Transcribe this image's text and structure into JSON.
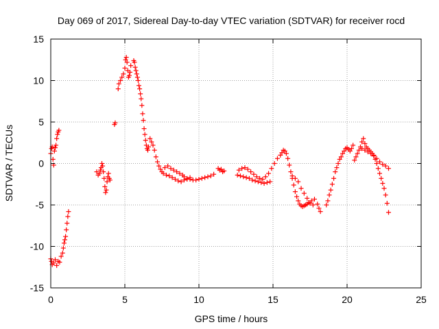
{
  "chart_data": {
    "type": "scatter",
    "title": "Day 069 of 2017, Sidereal Day-to-day VTEC variation (SDTVAR) for receiver rocd",
    "xlabel": "GPS time / hours",
    "ylabel": "SDTVAR / TECUs",
    "xlim": [
      0,
      25
    ],
    "ylim": [
      -15,
      15
    ],
    "xticks": [
      0,
      5,
      10,
      15,
      20,
      25
    ],
    "yticks": [
      -15,
      -10,
      -5,
      0,
      5,
      10,
      15
    ],
    "grid": true,
    "marker": "+",
    "series_color": "#ff0000",
    "series": [
      {
        "name": "SDTVAR",
        "x": [
          0.0,
          0.05,
          0.1,
          0.15,
          0.2,
          0.25,
          0.3,
          0.35,
          0.4,
          0.45,
          0.5,
          0.55,
          0.0,
          0.05,
          0.1,
          0.2,
          0.3,
          0.4,
          0.5,
          0.6,
          0.7,
          0.8,
          0.85,
          0.9,
          0.95,
          1.0,
          1.05,
          1.1,
          1.15,
          1.2,
          3.1,
          3.2,
          3.3,
          3.35,
          3.4,
          3.45,
          3.5,
          3.55,
          3.6,
          3.65,
          3.7,
          3.75,
          3.8,
          3.85,
          3.9,
          3.95,
          4.0,
          4.3,
          4.35,
          4.55,
          4.6,
          4.7,
          4.8,
          4.9,
          5.0,
          5.05,
          5.1,
          5.15,
          5.2,
          5.25,
          5.3,
          5.35,
          5.4,
          5.6,
          5.65,
          5.7,
          5.75,
          5.8,
          5.85,
          5.9,
          5.95,
          6.0,
          6.05,
          6.1,
          6.15,
          6.2,
          6.25,
          6.3,
          6.35,
          6.4,
          6.45,
          6.5,
          6.55,
          6.6,
          6.7,
          6.8,
          6.9,
          7.0,
          7.1,
          7.2,
          7.3,
          7.4,
          7.5,
          7.6,
          7.8,
          8.0,
          8.2,
          8.4,
          8.6,
          8.8,
          9.0,
          9.2,
          9.4,
          7.7,
          7.9,
          8.1,
          8.3,
          8.5,
          8.7,
          8.9,
          9.0,
          9.2,
          9.4,
          9.6,
          9.8,
          10.0,
          10.2,
          10.4,
          10.6,
          10.8,
          11.0,
          11.3,
          11.4,
          11.5,
          11.6,
          11.7,
          12.6,
          12.8,
          13.0,
          13.2,
          13.4,
          13.6,
          13.8,
          14.0,
          14.2,
          14.4,
          14.6,
          14.8,
          12.7,
          12.9,
          13.1,
          13.3,
          13.5,
          13.7,
          13.9,
          14.1,
          14.3,
          14.5,
          14.7,
          14.9,
          15.1,
          15.3,
          15.5,
          15.6,
          15.7,
          15.8,
          15.9,
          16.0,
          16.1,
          16.2,
          16.3,
          16.4,
          16.5,
          16.6,
          16.7,
          16.8,
          16.9,
          17.0,
          17.1,
          17.2,
          17.3,
          17.4,
          17.6,
          17.8,
          16.3,
          16.5,
          16.7,
          16.9,
          17.1,
          17.3,
          17.5,
          17.7,
          18.0,
          18.1,
          18.2,
          18.6,
          18.7,
          18.8,
          18.9,
          19.0,
          19.1,
          19.2,
          19.3,
          19.4,
          19.5,
          19.6,
          19.7,
          19.8,
          19.9,
          20.0,
          20.1,
          20.2,
          20.3,
          20.4,
          20.5,
          20.6,
          20.7,
          20.8,
          20.9,
          21.0,
          21.1,
          21.2,
          21.3,
          21.4,
          21.5,
          21.6,
          21.7,
          21.8,
          21.0,
          21.2,
          21.4,
          21.6,
          21.8,
          22.0,
          22.2,
          22.4,
          22.6,
          22.8,
          21.9,
          22.0,
          22.1,
          22.2,
          22.3,
          22.4,
          22.5,
          22.6,
          22.7,
          22.8
        ],
        "y": [
          1.2,
          1.8,
          2.0,
          0.5,
          -0.2,
          1.5,
          1.9,
          2.2,
          3.0,
          3.5,
          3.8,
          4.0,
          -11.5,
          -11.8,
          -12.2,
          -12.0,
          -11.6,
          -12.3,
          -11.8,
          -11.9,
          -11.2,
          -10.8,
          -10.2,
          -9.6,
          -9.2,
          -8.8,
          -8.0,
          -7.2,
          -6.4,
          -5.8,
          -1.0,
          -1.4,
          -1.2,
          -0.8,
          -0.5,
          0.0,
          -0.3,
          -1.0,
          -1.8,
          -2.8,
          -3.5,
          -3.2,
          -2.2,
          -1.6,
          -1.2,
          -1.8,
          -2.0,
          4.7,
          4.9,
          9.0,
          9.6,
          10.0,
          10.4,
          10.8,
          11.5,
          12.5,
          12.8,
          12.2,
          11.2,
          10.4,
          10.6,
          11.0,
          11.8,
          12.4,
          12.2,
          11.6,
          11.2,
          10.8,
          10.4,
          10.0,
          9.4,
          9.0,
          8.4,
          7.8,
          7.0,
          6.0,
          5.2,
          4.2,
          3.5,
          2.8,
          2.2,
          1.8,
          1.6,
          2.0,
          3.0,
          2.6,
          2.2,
          1.6,
          0.8,
          0.2,
          -0.3,
          -0.7,
          -1.0,
          -1.2,
          -1.4,
          -1.5,
          -1.7,
          -1.9,
          -2.1,
          -2.2,
          -2.0,
          -1.9,
          -1.7,
          -0.5,
          -0.3,
          -0.6,
          -0.8,
          -1.0,
          -1.2,
          -1.4,
          -1.6,
          -1.8,
          -1.9,
          -2.0,
          -2.0,
          -1.9,
          -1.8,
          -1.7,
          -1.6,
          -1.5,
          -1.3,
          -0.6,
          -0.8,
          -0.7,
          -1.0,
          -0.9,
          -1.4,
          -1.5,
          -1.6,
          -1.7,
          -1.8,
          -2.0,
          -2.1,
          -2.2,
          -2.3,
          -2.4,
          -2.3,
          -2.2,
          -0.8,
          -0.6,
          -0.5,
          -0.7,
          -1.0,
          -1.3,
          -1.6,
          -1.8,
          -1.9,
          -1.6,
          -1.2,
          -0.6,
          0.0,
          0.6,
          1.0,
          1.3,
          1.6,
          1.5,
          1.2,
          0.6,
          -0.2,
          -1.0,
          -1.8,
          -2.6,
          -3.4,
          -4.0,
          -4.5,
          -4.9,
          -5.1,
          -5.2,
          -5.1,
          -5.0,
          -4.9,
          -4.7,
          -4.5,
          -4.3,
          -1.5,
          -1.8,
          -2.2,
          -3.0,
          -3.6,
          -4.2,
          -4.8,
          -5.0,
          -4.9,
          -5.4,
          -5.8,
          -5.0,
          -4.5,
          -3.8,
          -3.2,
          -2.5,
          -1.8,
          -1.0,
          -0.5,
          0.0,
          0.5,
          0.8,
          1.2,
          1.5,
          1.8,
          1.9,
          1.7,
          1.5,
          1.8,
          2.2,
          0.4,
          0.8,
          1.2,
          1.6,
          2.0,
          2.6,
          3.0,
          2.4,
          2.0,
          1.8,
          1.6,
          1.4,
          1.2,
          1.0,
          1.8,
          1.6,
          1.4,
          1.2,
          0.9,
          0.6,
          0.2,
          -0.1,
          -0.3,
          -0.6,
          0.5,
          0.0,
          -0.6,
          -1.2,
          -1.8,
          -2.4,
          -3.0,
          -3.8,
          -4.8,
          -5.9
        ]
      }
    ]
  }
}
